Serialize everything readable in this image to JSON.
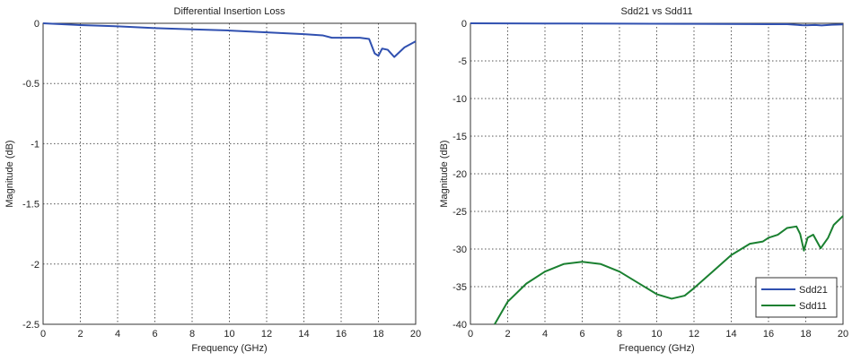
{
  "chart_data": [
    {
      "type": "line",
      "title": "Differential Insertion Loss",
      "xlabel": "Frequency (GHz)",
      "ylabel": "Magnitude (dB)",
      "xlim": [
        0,
        20
      ],
      "ylim": [
        -2.5,
        0
      ],
      "grid": true,
      "xticks": [
        0,
        2,
        4,
        6,
        8,
        10,
        12,
        14,
        16,
        18,
        20
      ],
      "yticks": [
        0,
        -0.5,
        -1,
        -1.5,
        -2,
        -2.5
      ],
      "ytick_labels": [
        "0",
        "-0.5",
        "-1",
        "-1.5",
        "-2",
        "-2.5"
      ],
      "series": [
        {
          "color": "#3050b0",
          "x": [
            0,
            2,
            4,
            6,
            8,
            10,
            12,
            14,
            15,
            15.5,
            16,
            17,
            17.5,
            17.8,
            18,
            18.2,
            18.5,
            18.85,
            19.4,
            20
          ],
          "y": [
            0,
            -0.015,
            -0.025,
            -0.04,
            -0.05,
            -0.06,
            -0.075,
            -0.09,
            -0.1,
            -0.12,
            -0.12,
            -0.12,
            -0.13,
            -0.25,
            -0.27,
            -0.21,
            -0.22,
            -0.28,
            -0.2,
            -0.15
          ]
        }
      ]
    },
    {
      "type": "line",
      "title": "Sdd21 vs Sdd11",
      "xlabel": "Frequency (GHz)",
      "ylabel": "Magnitude (dB)",
      "xlim": [
        0,
        20
      ],
      "ylim": [
        -40,
        0
      ],
      "grid": true,
      "legend": "bottom-right",
      "xticks": [
        0,
        2,
        4,
        6,
        8,
        10,
        12,
        14,
        16,
        18,
        20
      ],
      "yticks": [
        0,
        -5,
        -10,
        -15,
        -20,
        -25,
        -30,
        -35,
        -40
      ],
      "ytick_labels": [
        "0",
        "-5",
        "-10",
        "-15",
        "-20",
        "-25",
        "-30",
        "-35",
        "-40"
      ],
      "series": [
        {
          "name": "Sdd21",
          "color": "#3050b0",
          "x": [
            0,
            4,
            8,
            12,
            15,
            16,
            17,
            17.8,
            18,
            18.5,
            18.85,
            19.4,
            20
          ],
          "y": [
            0,
            -0.03,
            -0.05,
            -0.08,
            -0.1,
            -0.12,
            -0.12,
            -0.25,
            -0.27,
            -0.22,
            -0.28,
            -0.2,
            -0.15
          ]
        },
        {
          "name": "Sdd11",
          "color": "#1a8030",
          "x": [
            1.3,
            2,
            3,
            4,
            5,
            6,
            7,
            8,
            9,
            10,
            10.8,
            11.5,
            12,
            13,
            14,
            15,
            15.7,
            16,
            16.5,
            17,
            17.5,
            17.7,
            17.9,
            18.1,
            18.4,
            18.8,
            19.2,
            19.5,
            20
          ],
          "y": [
            -40,
            -37,
            -34.6,
            -33,
            -32,
            -31.7,
            -32,
            -33,
            -34.5,
            -36,
            -36.6,
            -36.2,
            -35.2,
            -33,
            -30.8,
            -29.3,
            -29,
            -28.5,
            -28.1,
            -27.2,
            -27,
            -28,
            -30.2,
            -28.5,
            -28.1,
            -29.9,
            -28.5,
            -26.8,
            -25.6
          ]
        }
      ]
    }
  ]
}
